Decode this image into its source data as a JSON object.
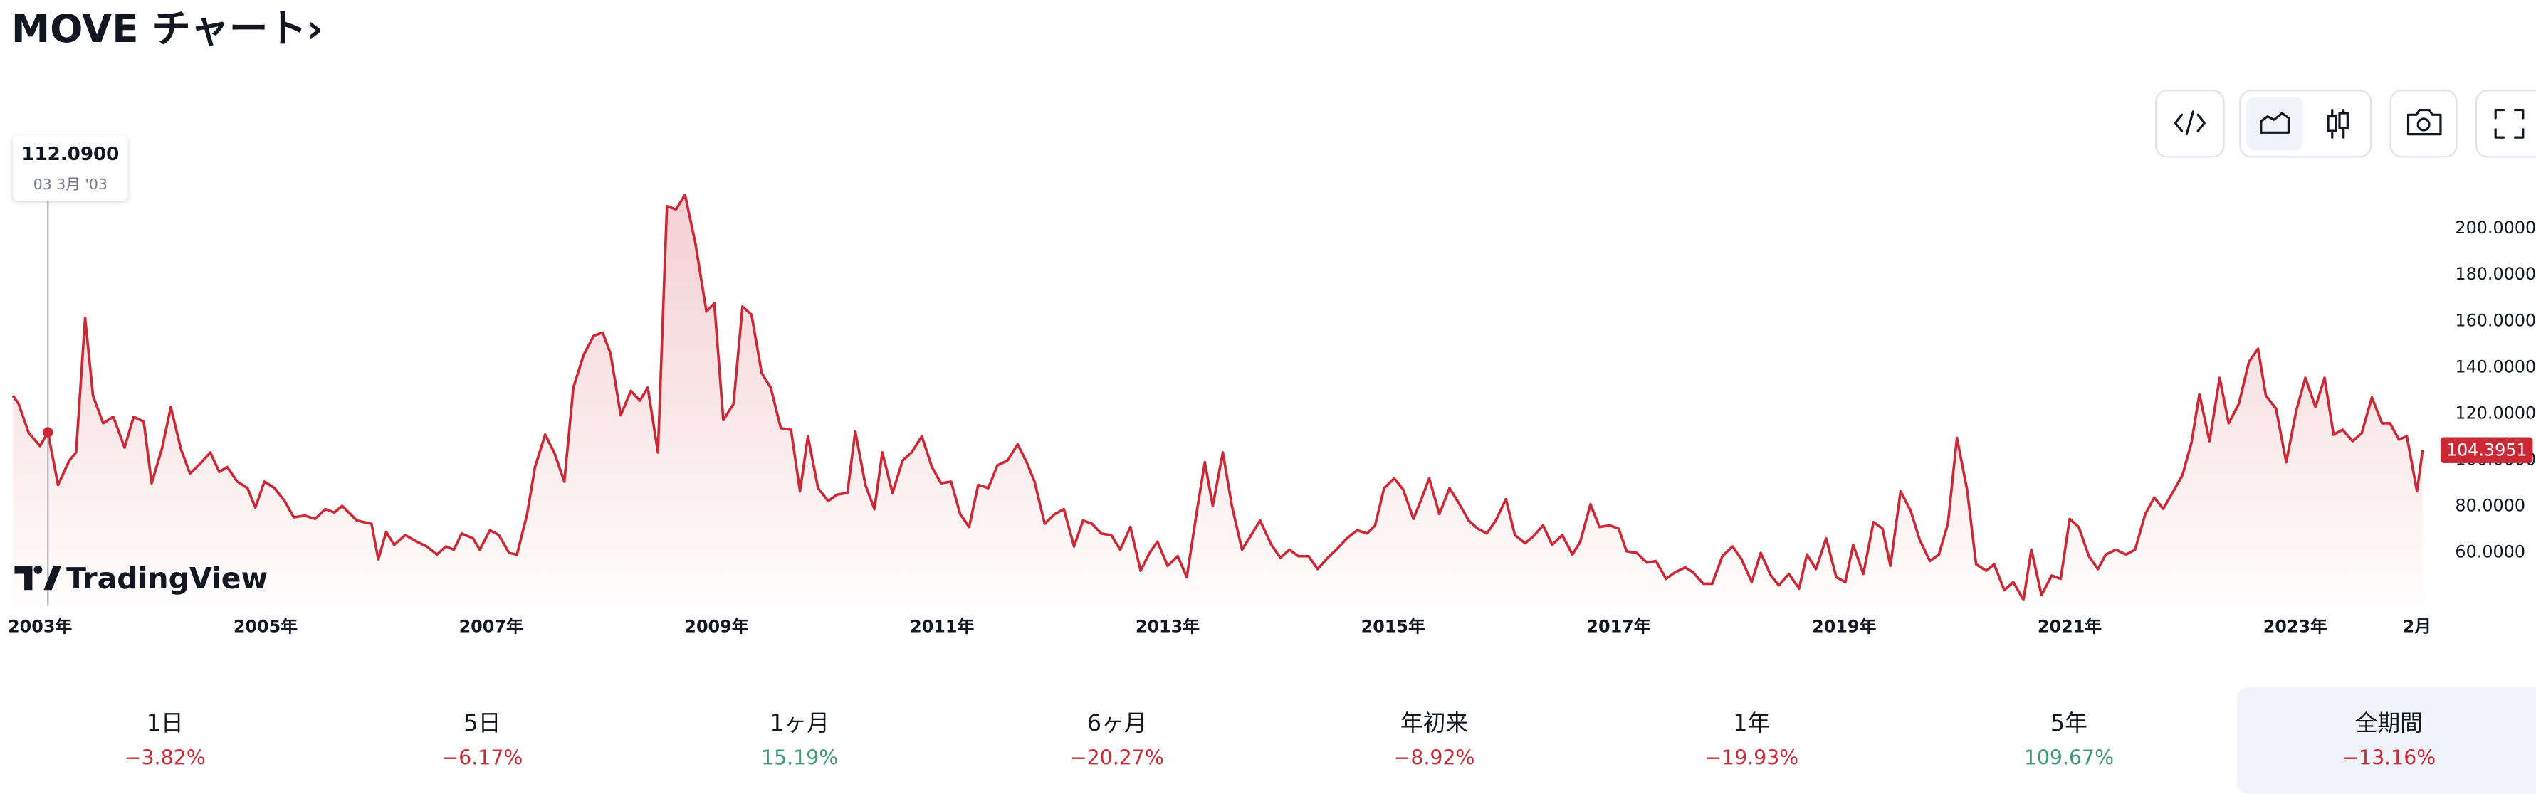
{
  "title": "MOVE チャート›",
  "watermark": "TradingView",
  "chart_data": {
    "type": "area",
    "xlim": [
      2002.76,
      2024.16
    ],
    "ylim": [
      37,
      236
    ],
    "grid": false,
    "xticks": [
      {
        "value": 2003,
        "label": "2003年"
      },
      {
        "value": 2005,
        "label": "2005年"
      },
      {
        "value": 2007,
        "label": "2007年"
      },
      {
        "value": 2009,
        "label": "2009年"
      },
      {
        "value": 2011,
        "label": "2011年"
      },
      {
        "value": 2013,
        "label": "2013年"
      },
      {
        "value": 2015,
        "label": "2015年"
      },
      {
        "value": 2017,
        "label": "2017年"
      },
      {
        "value": 2019,
        "label": "2019年"
      },
      {
        "value": 2021,
        "label": "2021年"
      },
      {
        "value": 2023,
        "label": "2023年"
      },
      {
        "value": 2024.08,
        "label": "2月"
      }
    ],
    "yticks": [
      {
        "value": 60,
        "label": "60.0000"
      },
      {
        "value": 80,
        "label": "80.0000"
      },
      {
        "value": 100,
        "label": "100.0000"
      },
      {
        "value": 120,
        "label": "120.0000"
      },
      {
        "value": 140,
        "label": "140.0000"
      },
      {
        "value": 160,
        "label": "160.0000"
      },
      {
        "value": 180,
        "label": "180.0000"
      },
      {
        "value": 200,
        "label": "200.0000"
      }
    ],
    "series": [
      {
        "color": "#cc2936",
        "x": [
          2002.76,
          2002.81,
          2002.9,
          2003.0,
          2003.07,
          2003.16,
          2003.26,
          2003.32,
          2003.4,
          2003.47,
          2003.56,
          2003.65,
          2003.75,
          2003.83,
          2003.92,
          2003.99,
          2004.08,
          2004.16,
          2004.25,
          2004.33,
          2004.42,
          2004.51,
          2004.59,
          2004.66,
          2004.75,
          2004.84,
          2004.91,
          2004.99,
          2005.08,
          2005.17,
          2005.25,
          2005.35,
          2005.44,
          2005.53,
          2005.61,
          2005.68,
          2005.81,
          2005.87,
          2005.94,
          2006.0,
          2006.07,
          2006.14,
          2006.24,
          2006.34,
          2006.43,
          2006.52,
          2006.6,
          2006.67,
          2006.74,
          2006.84,
          2006.9,
          2006.99,
          2007.07,
          2007.16,
          2007.23,
          2007.32,
          2007.39,
          2007.48,
          2007.56,
          2007.65,
          2007.73,
          2007.82,
          2007.91,
          2007.99,
          2008.06,
          2008.15,
          2008.24,
          2008.32,
          2008.39,
          2008.48,
          2008.56,
          2008.64,
          2008.72,
          2008.81,
          2008.91,
          2008.98,
          2009.06,
          2009.15,
          2009.23,
          2009.31,
          2009.4,
          2009.48,
          2009.57,
          2009.66,
          2009.74,
          2009.81,
          2009.9,
          2009.99,
          2010.07,
          2010.16,
          2010.23,
          2010.32,
          2010.4,
          2010.47,
          2010.56,
          2010.65,
          2010.73,
          2010.82,
          2010.91,
          2010.99,
          2011.08,
          2011.16,
          2011.24,
          2011.32,
          2011.41,
          2011.49,
          2011.58,
          2011.67,
          2011.75,
          2011.82,
          2011.91,
          2012.0,
          2012.08,
          2012.17,
          2012.25,
          2012.33,
          2012.41,
          2012.5,
          2012.58,
          2012.67,
          2012.76,
          2012.84,
          2012.91,
          2013.0,
          2013.09,
          2013.17,
          2013.26,
          2013.33,
          2013.4,
          2013.49,
          2013.57,
          2013.66,
          2013.75,
          2013.82,
          2013.92,
          2014.0,
          2014.08,
          2014.16,
          2014.25,
          2014.33,
          2014.42,
          2014.51,
          2014.59,
          2014.68,
          2014.77,
          2014.84,
          2014.92,
          2015.01,
          2015.09,
          2015.18,
          2015.25,
          2015.32,
          2015.41,
          2015.5,
          2015.58,
          2015.67,
          2015.75,
          2015.83,
          2015.91,
          2016.0,
          2016.08,
          2016.17,
          2016.24,
          2016.33,
          2016.41,
          2016.5,
          2016.59,
          2016.66,
          2016.75,
          2016.83,
          2016.92,
          2017.0,
          2017.07,
          2017.16,
          2017.25,
          2017.33,
          2017.42,
          2017.5,
          2017.59,
          2017.66,
          2017.75,
          2017.83,
          2017.92,
          2018.01,
          2018.09,
          2018.18,
          2018.26,
          2018.35,
          2018.42,
          2018.51,
          2018.6,
          2018.67,
          2018.75,
          2018.84,
          2018.93,
          2019.01,
          2019.08,
          2019.17,
          2019.26,
          2019.34,
          2019.41,
          2019.5,
          2019.59,
          2019.67,
          2019.76,
          2019.84,
          2019.92,
          2020.0,
          2020.09,
          2020.17,
          2020.26,
          2020.33,
          2020.42,
          2020.5,
          2020.59,
          2020.66,
          2020.75,
          2020.84,
          2020.92,
          2021.0,
          2021.08,
          2021.17,
          2021.25,
          2021.32,
          2021.41,
          2021.5,
          2021.58,
          2021.67,
          2021.75,
          2021.83,
          2021.91,
          2022.0,
          2022.08,
          2022.15,
          2022.24,
          2022.33,
          2022.41,
          2022.5,
          2022.59,
          2022.67,
          2022.74,
          2022.83,
          2022.92,
          2023.01,
          2023.09,
          2023.18,
          2023.26,
          2023.34,
          2023.42,
          2023.51,
          2023.59,
          2023.68,
          2023.77,
          2023.84,
          2023.92,
          2023.99,
          2024.08,
          2024.13
        ],
        "values": [
          127.9,
          124.4,
          111.8,
          106.2,
          112.09,
          89.4,
          99.9,
          103.4,
          161.5,
          127.9,
          116.0,
          118.8,
          105.5,
          118.8,
          116.7,
          90.1,
          104.8,
          123.0,
          104.8,
          94.3,
          98.5,
          103.4,
          95.0,
          97.1,
          90.8,
          88.0,
          79.6,
          90.8,
          88.0,
          82.4,
          75.4,
          76.1,
          74.7,
          78.9,
          77.5,
          80.3,
          74.0,
          73.3,
          72.6,
          57.2,
          69.1,
          63.5,
          67.7,
          64.9,
          62.8,
          59.3,
          62.8,
          61.4,
          68.4,
          66.3,
          61.4,
          69.8,
          67.7,
          60.0,
          59.3,
          76.8,
          97.1,
          111.1,
          103.4,
          90.8,
          131.4,
          145.4,
          153.8,
          155.2,
          146.1,
          119.5,
          130.0,
          125.8,
          131.4,
          103.4,
          209.8,
          208.4,
          214.7,
          194.4,
          164.3,
          167.8,
          117.4,
          124.4,
          166.4,
          162.9,
          137.7,
          131.4,
          113.9,
          113.2,
          86.6,
          110.4,
          88.0,
          82.4,
          85.2,
          85.9,
          112.5,
          89.4,
          78.9,
          103.4,
          85.9,
          99.9,
          103.4,
          110.4,
          97.1,
          90.1,
          90.8,
          76.8,
          71.2,
          89.4,
          88.0,
          97.8,
          99.9,
          106.9,
          99.2,
          90.8,
          72.6,
          76.8,
          78.9,
          62.8,
          74.0,
          72.6,
          68.4,
          67.7,
          61.4,
          71.2,
          52.3,
          60.0,
          64.9,
          54.4,
          58.6,
          49.5,
          78.2,
          99.2,
          80.3,
          103.4,
          80.3,
          61.4,
          68.4,
          74.0,
          63.5,
          57.9,
          61.4,
          58.6,
          58.6,
          53.0,
          57.9,
          62.1,
          66.3,
          69.8,
          68.4,
          71.9,
          88.0,
          92.2,
          87.3,
          74.7,
          83.2,
          92.2,
          76.8,
          88.0,
          81.7,
          74.0,
          70.5,
          68.4,
          74.0,
          83.2,
          67.7,
          64.2,
          67.0,
          71.9,
          63.5,
          67.7,
          59.3,
          64.9,
          81.0,
          71.2,
          71.9,
          70.5,
          60.7,
          60.0,
          55.8,
          56.5,
          48.8,
          51.6,
          53.7,
          51.6,
          46.7,
          46.7,
          58.6,
          62.8,
          57.2,
          47.4,
          60.0,
          50.2,
          46.0,
          50.9,
          44.6,
          59.3,
          53.0,
          66.3,
          49.5,
          47.4,
          63.5,
          50.9,
          73.3,
          70.5,
          54.4,
          86.6,
          78.2,
          65.6,
          56.5,
          59.3,
          72.6,
          109.7,
          87.3,
          55.1,
          52.3,
          55.1,
          43.9,
          47.4,
          39.7,
          61.4,
          41.8,
          50.2,
          48.8,
          74.7,
          71.2,
          58.6,
          53.0,
          59.3,
          61.4,
          59.3,
          61.4,
          76.8,
          83.9,
          79.0,
          85.9,
          93.6,
          107.6,
          128.6,
          108.3,
          135.6,
          116.0,
          124.4,
          142.6,
          148.2,
          127.9,
          122.3,
          99.2,
          121.6,
          135.6,
          123.0,
          135.6,
          111.1,
          113.2,
          108.3,
          111.8,
          127.2,
          116.0,
          116.0,
          109.0,
          110.4,
          86.6,
          104.3951
        ]
      }
    ],
    "last_value": 104.3951,
    "tooltip": {
      "x": 2003.07,
      "value": 112.09,
      "label": "112.0900",
      "date": "03 3月 '03"
    }
  },
  "performance": [
    {
      "label": "1日",
      "value": -3.82,
      "value_label": "−3.82%"
    },
    {
      "label": "5日",
      "value": -6.17,
      "value_label": "−6.17%"
    },
    {
      "label": "1ヶ月",
      "value": 15.19,
      "value_label": "15.19%"
    },
    {
      "label": "6ヶ月",
      "value": -20.27,
      "value_label": "−20.27%"
    },
    {
      "label": "年初来",
      "value": -8.92,
      "value_label": "−8.92%"
    },
    {
      "label": "1年",
      "value": -19.93,
      "value_label": "−19.93%"
    },
    {
      "label": "5年",
      "value": 109.67,
      "value_label": "109.67%"
    },
    {
      "label": "全期間",
      "value": -13.16,
      "value_label": "−13.16%",
      "selected": true
    }
  ]
}
